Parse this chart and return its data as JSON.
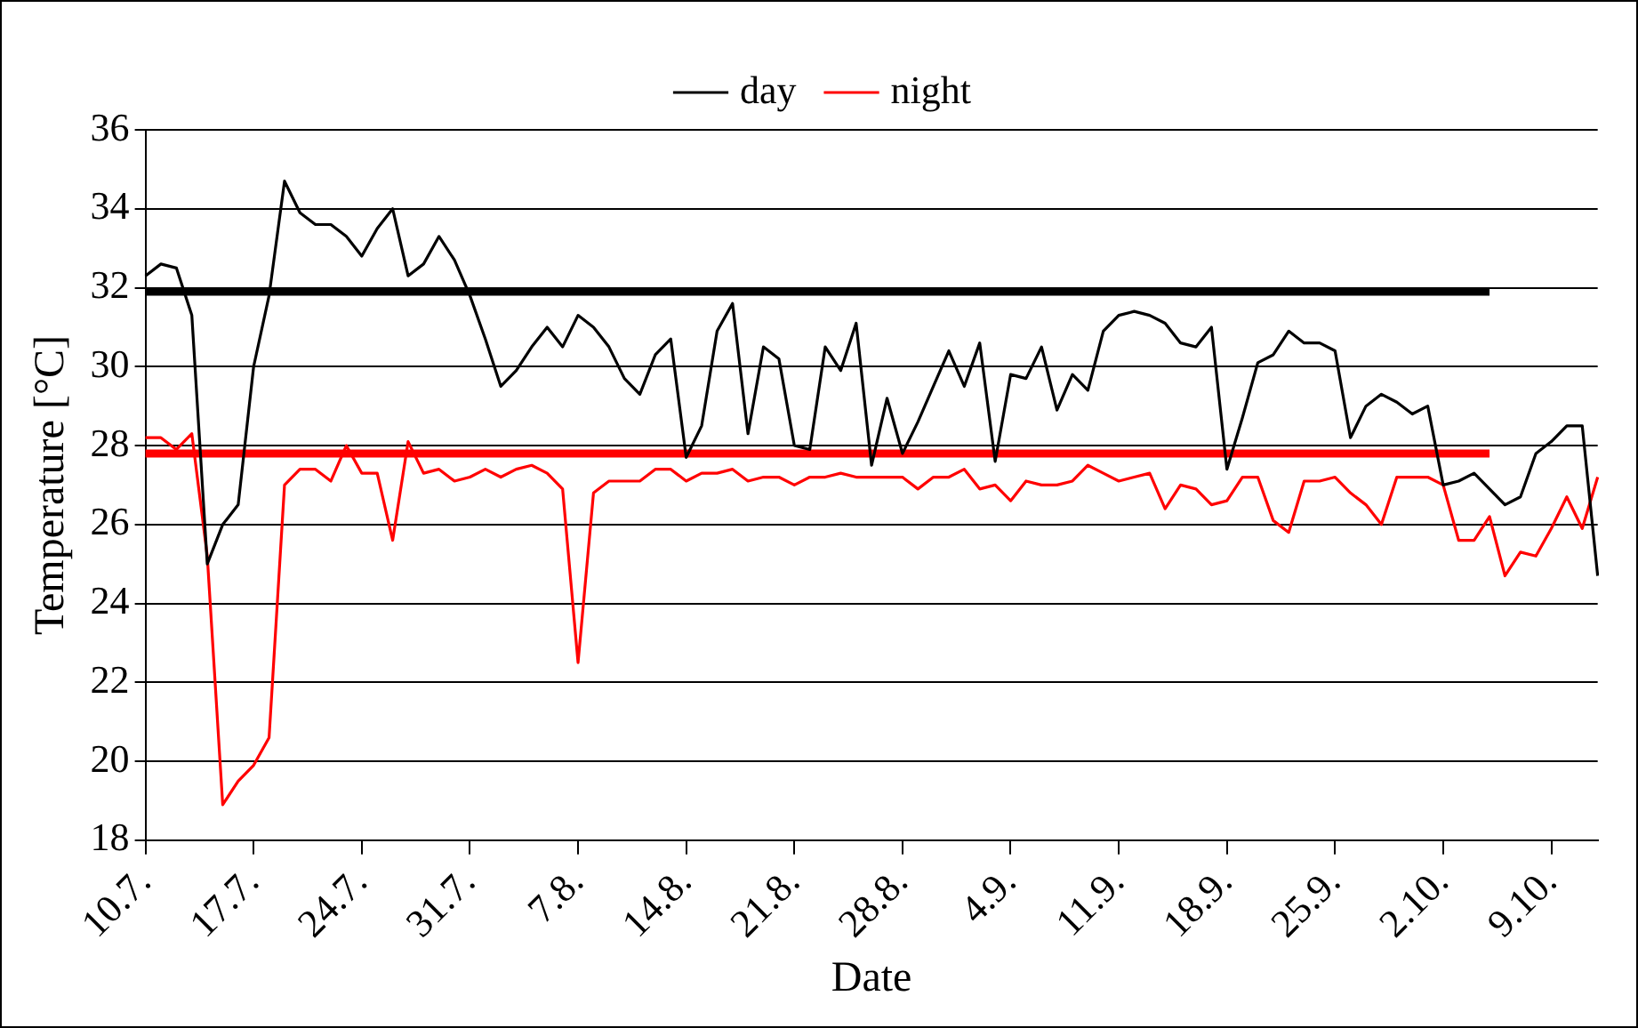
{
  "chart_data": {
    "type": "line",
    "xlabel": "Date",
    "ylabel": "Temperature [°C]",
    "ylim": [
      18,
      36
    ],
    "yticks": [
      18,
      20,
      22,
      24,
      26,
      28,
      30,
      32,
      34,
      36
    ],
    "grid": "y",
    "legend": "top",
    "marker": "none",
    "line_style": "solid",
    "categories": [
      "10.7.",
      null,
      null,
      null,
      null,
      null,
      null,
      "17.7.",
      null,
      null,
      null,
      null,
      null,
      null,
      "24.7.",
      null,
      null,
      null,
      null,
      null,
      null,
      "31.7.",
      null,
      null,
      null,
      null,
      null,
      null,
      "7.8.",
      null,
      null,
      null,
      null,
      null,
      null,
      "14.8.",
      null,
      null,
      null,
      null,
      null,
      null,
      "21.8.",
      null,
      null,
      null,
      null,
      null,
      null,
      "28.8.",
      null,
      null,
      null,
      null,
      null,
      null,
      "4.9.",
      null,
      null,
      null,
      null,
      null,
      null,
      "11.9.",
      null,
      null,
      null,
      null,
      null,
      null,
      "18.9.",
      null,
      null,
      null,
      null,
      null,
      null,
      "25.9.",
      null,
      null,
      null,
      null,
      null,
      null,
      "2.10.",
      null,
      null,
      null,
      null,
      null,
      null,
      "9.10.",
      null,
      null,
      null
    ],
    "series": [
      {
        "name": "day",
        "color": "#000000",
        "values": [
          32.3,
          32.6,
          32.5,
          31.3,
          25.0,
          26.0,
          26.5,
          30.0,
          31.8,
          34.7,
          33.9,
          33.6,
          33.6,
          33.3,
          32.8,
          33.5,
          34.0,
          32.3,
          32.6,
          33.3,
          32.7,
          31.8,
          30.7,
          29.5,
          29.9,
          30.5,
          31.0,
          30.5,
          31.3,
          31.0,
          30.5,
          29.7,
          29.3,
          30.3,
          30.7,
          27.7,
          28.5,
          30.9,
          31.6,
          28.3,
          30.5,
          30.2,
          28.0,
          27.9,
          30.5,
          29.9,
          31.1,
          27.5,
          29.2,
          27.8,
          28.6,
          29.5,
          30.4,
          29.5,
          30.6,
          27.6,
          29.8,
          29.7,
          30.5,
          28.9,
          29.8,
          29.4,
          30.9,
          31.3,
          31.4,
          31.3,
          31.1,
          30.6,
          30.5,
          31.0,
          27.4,
          28.7,
          30.1,
          30.3,
          30.9,
          30.6,
          30.6,
          30.4,
          28.2,
          29.0,
          29.3,
          29.1,
          28.8,
          29.0,
          27.0,
          27.1,
          27.3,
          26.9,
          26.5,
          26.7,
          27.8,
          28.1,
          28.5,
          28.5,
          24.7
        ]
      },
      {
        "name": "night",
        "color": "#ff0000",
        "values": [
          28.2,
          28.2,
          27.9,
          28.3,
          25.2,
          18.9,
          19.5,
          19.9,
          20.6,
          27.0,
          27.4,
          27.4,
          27.1,
          28.0,
          27.3,
          27.3,
          25.6,
          28.1,
          27.3,
          27.4,
          27.1,
          27.2,
          27.4,
          27.2,
          27.4,
          27.5,
          27.3,
          26.9,
          22.5,
          26.8,
          27.1,
          27.1,
          27.1,
          27.4,
          27.4,
          27.1,
          27.3,
          27.3,
          27.4,
          27.1,
          27.2,
          27.2,
          27.0,
          27.2,
          27.2,
          27.3,
          27.2,
          27.2,
          27.2,
          27.2,
          26.9,
          27.2,
          27.2,
          27.4,
          26.9,
          27.0,
          26.6,
          27.1,
          27.0,
          27.0,
          27.1,
          27.5,
          27.3,
          27.1,
          27.2,
          27.3,
          26.4,
          27.0,
          26.9,
          26.5,
          26.6,
          27.2,
          27.2,
          26.1,
          25.8,
          27.1,
          27.1,
          27.2,
          26.8,
          26.5,
          26.0,
          27.2,
          27.2,
          27.2,
          27.0,
          25.6,
          25.6,
          26.2,
          24.7,
          25.3,
          25.2,
          25.9,
          26.7,
          25.9,
          27.2
        ]
      },
      {
        "color": "#000000",
        "values": [
          31.9,
          31.9,
          31.9,
          31.9,
          31.9,
          31.9,
          31.9,
          31.9,
          31.9,
          31.9,
          31.9,
          31.9,
          31.9,
          31.9,
          31.9,
          31.9,
          31.9,
          31.9,
          31.9,
          31.9,
          31.9,
          31.9,
          31.9,
          31.9,
          31.9,
          31.9,
          31.9,
          31.9,
          31.9,
          31.9,
          31.9,
          31.9,
          31.9,
          31.9,
          31.9,
          31.9,
          31.9,
          31.9,
          31.9,
          31.9,
          31.9,
          31.9,
          31.9,
          31.9,
          31.9,
          31.9,
          31.9,
          31.9,
          31.9,
          31.9,
          31.9,
          31.9,
          31.9,
          31.9,
          31.9,
          31.9,
          31.9,
          31.9,
          31.9,
          31.9,
          31.9,
          31.9,
          31.9,
          31.9,
          31.9,
          31.9,
          31.9,
          31.9,
          31.9,
          31.9,
          31.9,
          31.9,
          31.9,
          31.9,
          31.9,
          31.9,
          31.9,
          31.9,
          31.9,
          31.9,
          31.9,
          31.9,
          31.9,
          31.9,
          31.9,
          31.9,
          31.9,
          31.9,
          null,
          null,
          null,
          null,
          null,
          null,
          null
        ]
      },
      {
        "color": "#ff0000",
        "values": [
          27.8,
          27.8,
          27.8,
          27.8,
          27.8,
          27.8,
          27.8,
          27.8,
          27.8,
          27.8,
          27.8,
          27.8,
          27.8,
          27.8,
          27.8,
          27.8,
          27.8,
          27.8,
          27.8,
          27.8,
          27.8,
          27.8,
          27.8,
          27.8,
          27.8,
          27.8,
          27.8,
          27.8,
          27.8,
          27.8,
          27.8,
          27.8,
          27.8,
          27.8,
          27.8,
          27.8,
          27.8,
          27.8,
          27.8,
          27.8,
          27.8,
          27.8,
          27.8,
          27.8,
          27.8,
          27.8,
          27.8,
          27.8,
          27.8,
          27.8,
          27.8,
          27.8,
          27.8,
          27.8,
          27.8,
          27.8,
          27.8,
          27.8,
          27.8,
          27.8,
          27.8,
          27.8,
          27.8,
          27.8,
          27.8,
          27.8,
          27.8,
          27.8,
          27.8,
          27.8,
          27.8,
          27.8,
          27.8,
          27.8,
          27.8,
          27.8,
          27.8,
          27.8,
          27.8,
          27.8,
          27.8,
          27.8,
          27.8,
          27.8,
          27.8,
          27.8,
          27.8,
          27.8,
          null,
          null,
          null,
          null,
          null,
          null,
          null
        ]
      }
    ]
  }
}
